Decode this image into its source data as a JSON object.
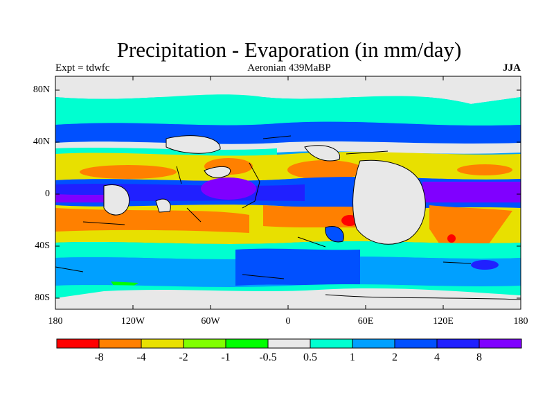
{
  "title": "Precipitation - Evaporation (in mm/day)",
  "subtitle_left": "Expt = tdwfc",
  "subtitle_center": "Aeronian 439MaBP",
  "subtitle_right": "JJA",
  "latitude_labels": [
    "80N",
    "40N",
    "0",
    "40S",
    "80S"
  ],
  "longitude_labels": [
    "180",
    "120W",
    "60W",
    "0",
    "60E",
    "120E",
    "180"
  ],
  "legend": {
    "colors": [
      "#ff0000",
      "#ff8000",
      "#e8e000",
      "#80ff00",
      "#00ff00",
      "#e8e8e8",
      "#00ffd0",
      "#00a0ff",
      "#0050ff",
      "#2020ff",
      "#8000ff"
    ],
    "labels": [
      "-8",
      "-4",
      "-2",
      "-1",
      "-0.5",
      "0.5",
      "1",
      "2",
      "4",
      "8"
    ]
  },
  "palette": {
    "strong_dry": "#ff0000",
    "dry": "#ff8000",
    "moderate_dry": "#e8e000",
    "light_dry": "#80ff00",
    "slight_dry": "#00ff00",
    "neutral": "#e8e8e8",
    "slight_wet": "#00ffd0",
    "light_wet": "#00a0ff",
    "moderate_wet": "#0050ff",
    "wet": "#2020ff",
    "strong_wet": "#8000ff"
  }
}
